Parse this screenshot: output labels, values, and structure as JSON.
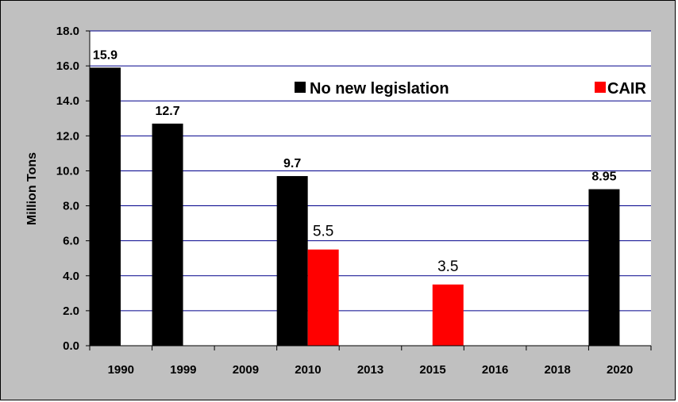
{
  "chart_data": {
    "type": "bar",
    "ylabel": "Million Tons",
    "xlabel": "",
    "ylim": [
      0,
      18
    ],
    "ytick_labels": [
      "0.0",
      "2.0",
      "4.0",
      "6.0",
      "8.0",
      "10.0",
      "12.0",
      "14.0",
      "16.0",
      "18.0"
    ],
    "categories": [
      "1990",
      "1999",
      "2009",
      "2010",
      "2013",
      "2015",
      "2016",
      "2018",
      "2020"
    ],
    "grid": true,
    "legend_placement": "top",
    "series": [
      {
        "name": "No new legislation",
        "color": "#000000",
        "values": [
          15.9,
          12.7,
          null,
          9.7,
          null,
          null,
          null,
          null,
          8.95
        ],
        "labels": [
          "15.9",
          "12.7",
          null,
          "9.7",
          null,
          null,
          null,
          null,
          "8.95"
        ]
      },
      {
        "name": "CAIR",
        "color": "#ff0000",
        "values": [
          null,
          null,
          null,
          5.5,
          null,
          3.5,
          null,
          null,
          null
        ],
        "labels": [
          null,
          null,
          null,
          "5.5",
          null,
          "3.5",
          null,
          null,
          null
        ]
      }
    ],
    "colors": {
      "background": "#c0c0c0",
      "plot_area": "#ffffff",
      "gridline": "#00008b"
    }
  }
}
